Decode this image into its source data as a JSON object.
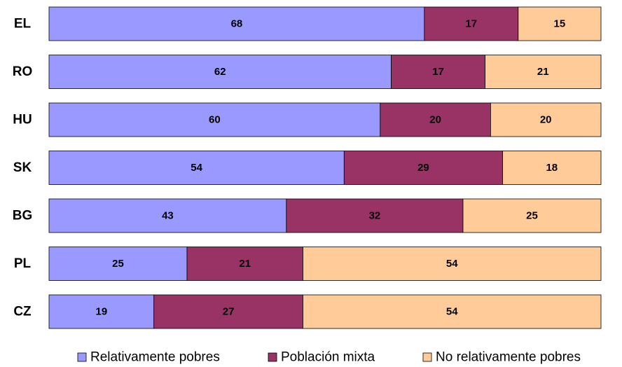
{
  "chart_data": {
    "type": "stacked_barh",
    "stacking": "percent",
    "categories": [
      "EL",
      "RO",
      "HU",
      "SK",
      "BG",
      "PL",
      "CZ"
    ],
    "series": [
      {
        "name": "Relativamente pobres",
        "color": "#9999ff",
        "values": [
          68,
          62,
          60,
          54,
          43,
          25,
          19
        ]
      },
      {
        "name": "Población mixta",
        "color": "#993366",
        "values": [
          17,
          17,
          20,
          29,
          32,
          21,
          27
        ]
      },
      {
        "name": "No relativamente pobres",
        "color": "#ffcc99",
        "values": [
          15,
          21,
          20,
          18,
          25,
          54,
          54
        ]
      }
    ],
    "legend": "bottom"
  }
}
